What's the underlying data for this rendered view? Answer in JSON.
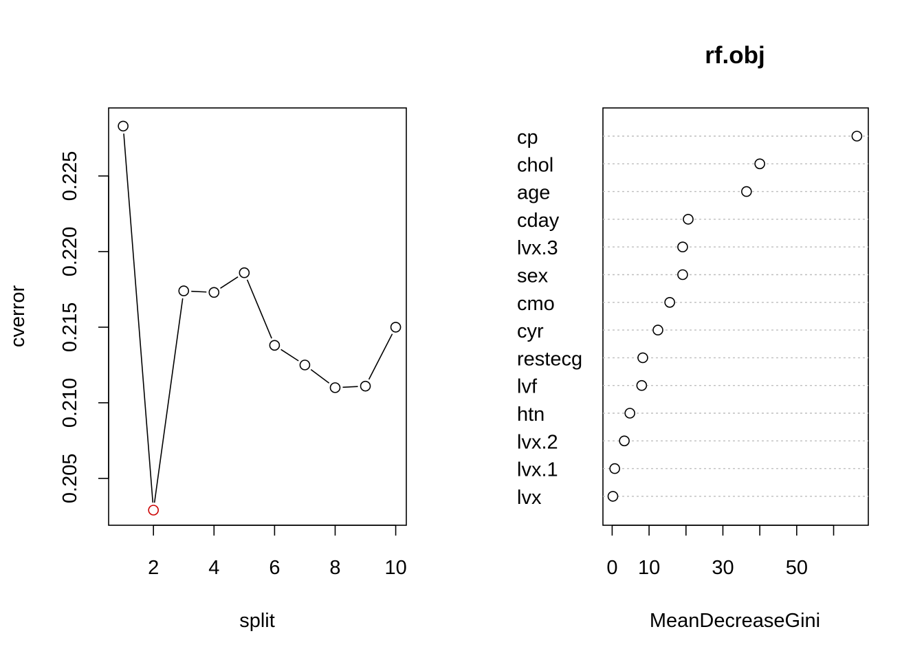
{
  "colors": {
    "line": "#000000",
    "highlight": "#cc0000",
    "grid": "#bebebe",
    "background": "#ffffff"
  },
  "chart_data": [
    {
      "type": "line",
      "title": "",
      "xlabel": "split",
      "ylabel": "cverror",
      "x": [
        1,
        2,
        3,
        4,
        5,
        6,
        7,
        8,
        9,
        10
      ],
      "y": [
        0.2283,
        0.2029,
        0.2174,
        0.2173,
        0.2186,
        0.2138,
        0.2125,
        0.211,
        0.2111,
        0.215
      ],
      "highlight_index": 1,
      "xlim": [
        0.52,
        10.35
      ],
      "ylim": [
        0.2019,
        0.2295
      ],
      "xticks": [
        2,
        4,
        6,
        8,
        10
      ],
      "xtick_labels": [
        "2",
        "4",
        "6",
        "8",
        "10"
      ],
      "yticks": [
        0.205,
        0.21,
        0.215,
        0.22,
        0.225
      ],
      "ytick_labels": [
        "0.205",
        "0.210",
        "0.215",
        "0.220",
        "0.225"
      ],
      "grid": false,
      "markers": "open-circle"
    },
    {
      "type": "scatter",
      "subtype": "dotchart",
      "title": "rf.obj",
      "xlabel": "MeanDecreaseGini",
      "ylabel": "",
      "categories": [
        "cp",
        "chol",
        "age",
        "cday",
        "lvx.3",
        "sex",
        "cmo",
        "cyr",
        "restecg",
        "lvf",
        "htn",
        "lvx.2",
        "lvx.1",
        "lvx"
      ],
      "values": [
        66.3,
        40.0,
        36.4,
        20.6,
        19.1,
        19.1,
        15.6,
        12.4,
        8.3,
        8.0,
        4.8,
        3.3,
        0.7,
        0.2
      ],
      "xlim": [
        -2.5,
        69.4
      ],
      "xticks": [
        0,
        10,
        20,
        30,
        40,
        50,
        60
      ],
      "xtick_labels": [
        "0",
        "10",
        "",
        "30",
        "",
        "50",
        ""
      ],
      "grid": "dotted-horizontal",
      "markers": "open-circle"
    }
  ]
}
